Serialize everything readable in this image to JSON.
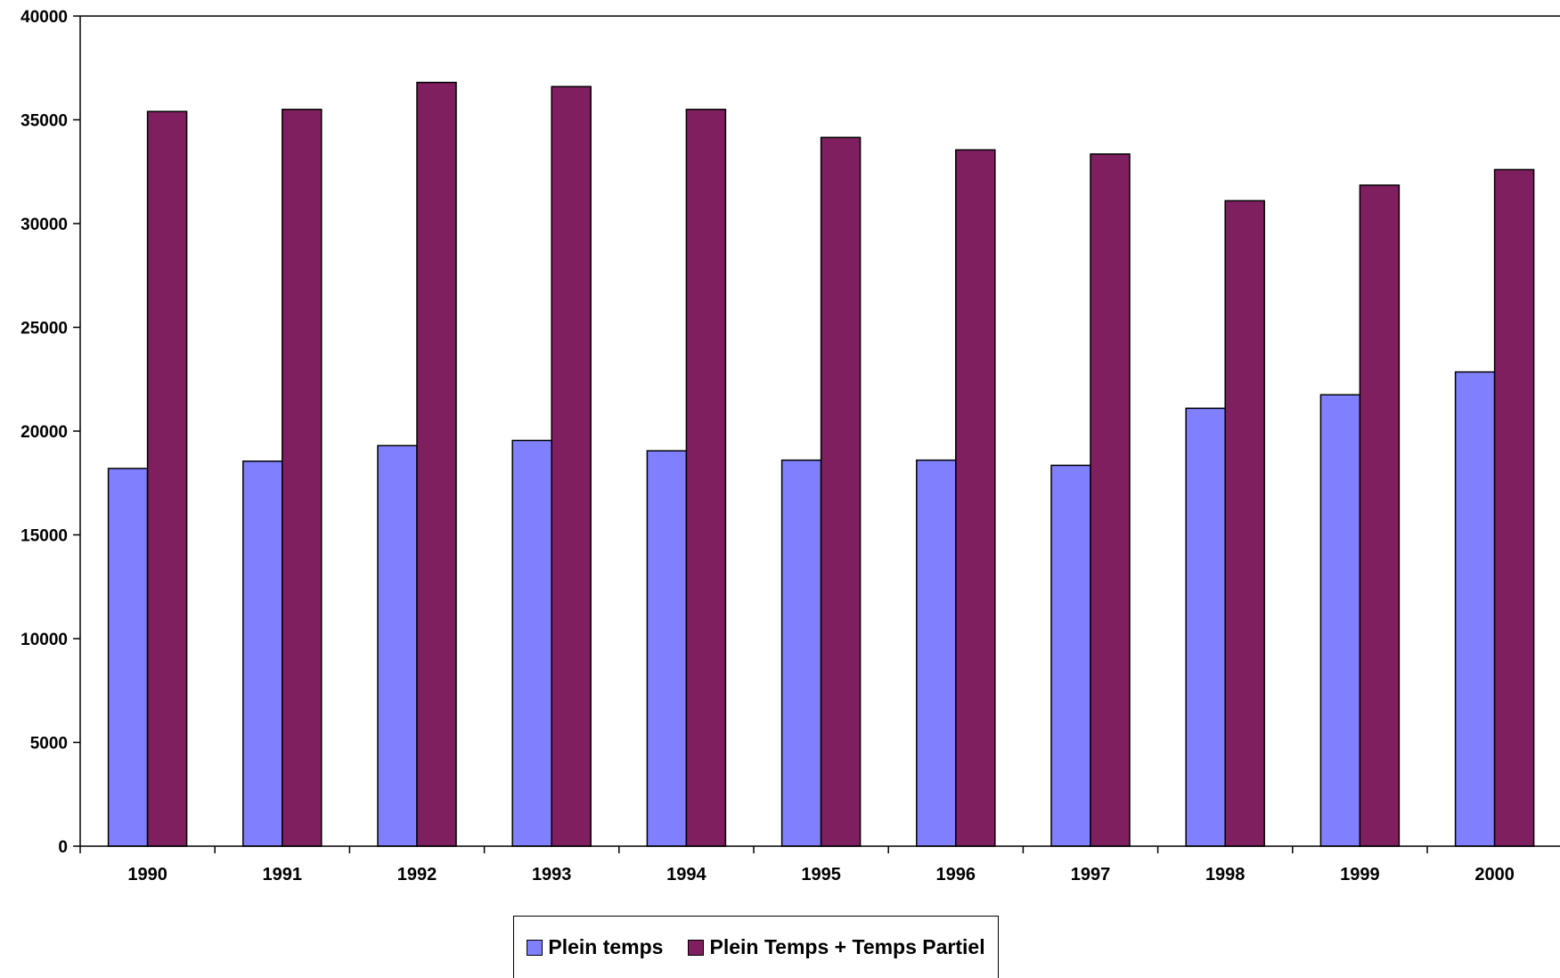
{
  "chart_data": {
    "type": "bar",
    "categories": [
      "1990",
      "1991",
      "1992",
      "1993",
      "1994",
      "1995",
      "1996",
      "1997",
      "1998",
      "1999",
      "2000"
    ],
    "series": [
      {
        "name": "Plein temps",
        "color": "#8080ff",
        "values": [
          18200,
          18550,
          19300,
          19550,
          19050,
          18600,
          18600,
          18350,
          21100,
          21750,
          22850
        ]
      },
      {
        "name": "Plein Temps + Temps Partiel",
        "color": "#7f1f5f",
        "values": [
          35400,
          35500,
          36800,
          36600,
          35500,
          34150,
          33550,
          33350,
          31100,
          31850,
          32600
        ]
      }
    ],
    "ylim": [
      0,
      40000
    ],
    "yticks": [
      "0",
      "5000",
      "10000",
      "15000",
      "20000",
      "25000",
      "30000",
      "35000",
      "40000"
    ],
    "title": "",
    "xlabel": "",
    "ylabel": "",
    "grid": false,
    "legend_position": "bottom"
  }
}
